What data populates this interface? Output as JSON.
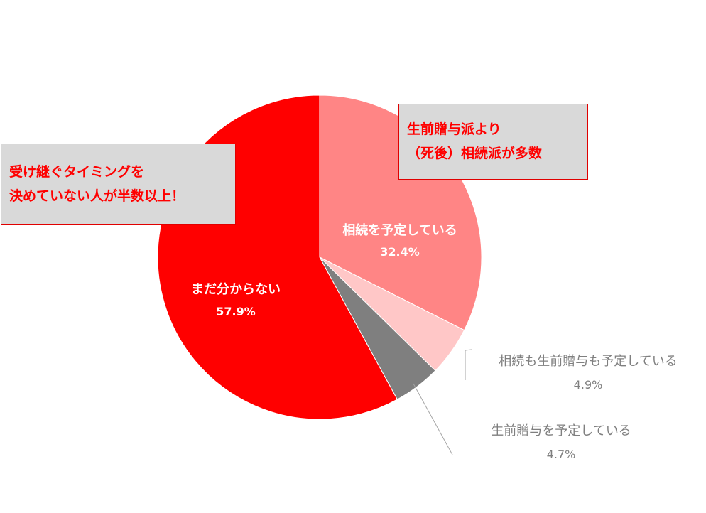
{
  "chart_data": {
    "type": "pie",
    "title": "",
    "start": "12 o'clock",
    "direction": "clockwise",
    "slices": [
      {
        "label": "相続を予定している",
        "value": 32.4,
        "value_text": "32.4%",
        "color": "#ff8585",
        "label_color": "#ffffff",
        "label_inside": true
      },
      {
        "label": "相続も生前贈与も予定している",
        "value": 4.9,
        "value_text": "4.9%",
        "color": "#ffc7c7",
        "label_color": "#7f7f7f",
        "label_inside": false
      },
      {
        "label": "生前贈与を予定している",
        "value": 4.7,
        "value_text": "4.7%",
        "color": "#7f7f7f",
        "label_color": "#7f7f7f",
        "label_inside": false
      },
      {
        "label": "まだ分からない",
        "value": 57.9,
        "value_text": "57.9%",
        "color": "#ff0000",
        "label_color": "#ffffff",
        "label_inside": true
      }
    ]
  },
  "callouts": {
    "left": {
      "line1": "受け継ぐタイミングを",
      "line2": "決めていない人が半数以上！"
    },
    "right": {
      "line1": "生前贈与派より",
      "line2": "（死後）相続派が多数"
    }
  },
  "colors": {
    "callout_background": "#d9d9d9",
    "callout_border": "#e00000",
    "callout_text": "#ff0000",
    "leader_line": "#a6a6a6"
  }
}
